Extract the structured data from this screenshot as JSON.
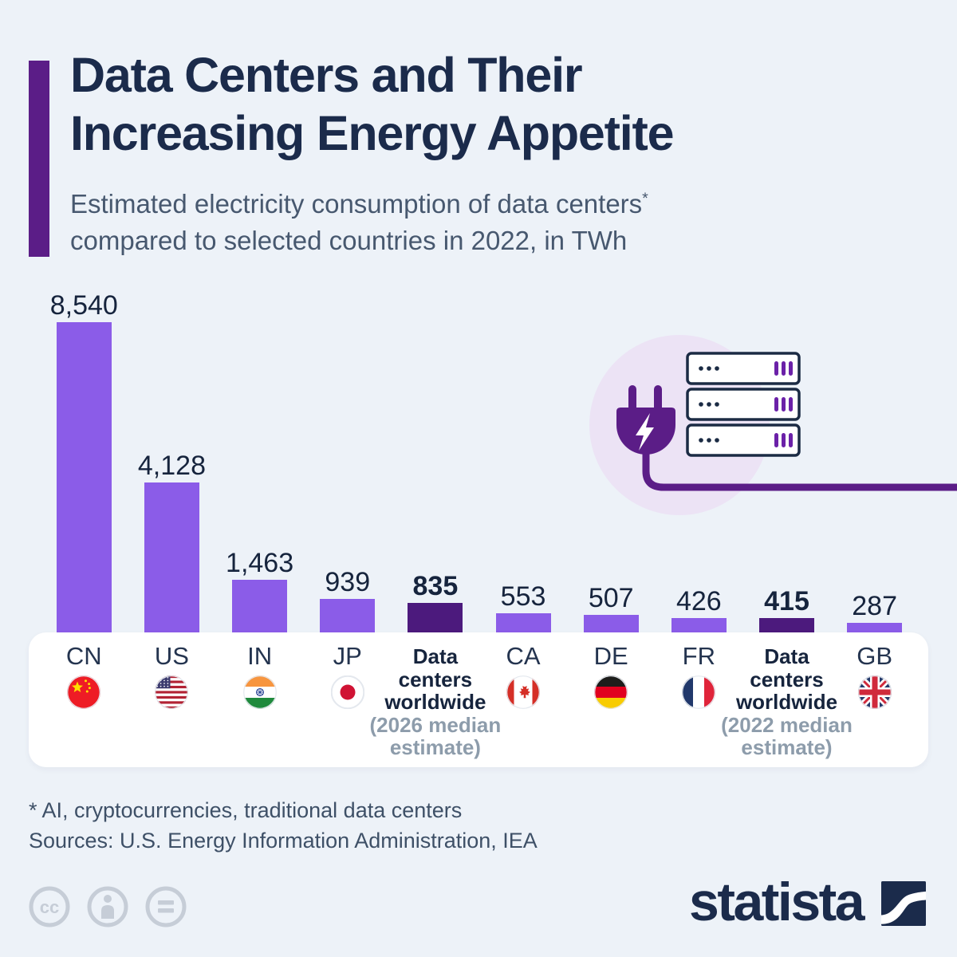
{
  "header": {
    "title_line1": "Data Centers and Their",
    "title_line2": "Increasing Energy Appetite",
    "subtitle_line1": "Estimated electricity consumption of data centers",
    "subtitle_asterisk": "*",
    "subtitle_line2": "compared to selected countries in 2022, in TWh"
  },
  "chart_data": {
    "type": "bar",
    "title": "Data Centers and Their Increasing Energy Appetite",
    "subtitle": "Estimated electricity consumption of data centers* compared to selected countries in 2022, in TWh",
    "unit": "TWh",
    "categories": [
      "CN",
      "US",
      "IN",
      "JP",
      "Data centers worldwide (2026 median estimate)",
      "CA",
      "DE",
      "FR",
      "Data centers worldwide (2022 median estimate)",
      "GB"
    ],
    "values": [
      8540,
      4128,
      1463,
      939,
      835,
      553,
      507,
      426,
      415,
      287
    ],
    "value_labels": [
      "8,540",
      "4,128",
      "1,463",
      "939",
      "835",
      "553",
      "507",
      "426",
      "415",
      "287"
    ],
    "highlighted_indices": [
      4,
      8
    ],
    "bar_color": "#8b5ce8",
    "highlight_color": "#4c1a7d",
    "ylim": [
      0,
      8540
    ],
    "grid": false,
    "legend": "none"
  },
  "axis_labels": [
    {
      "type": "country",
      "code": "CN",
      "flag": "cn"
    },
    {
      "type": "country",
      "code": "US",
      "flag": "us"
    },
    {
      "type": "country",
      "code": "IN",
      "flag": "in"
    },
    {
      "type": "country",
      "code": "JP",
      "flag": "jp"
    },
    {
      "type": "group",
      "lines": [
        "Data",
        "centers",
        "worldwide"
      ],
      "sub": [
        "(2026 median",
        "estimate)"
      ]
    },
    {
      "type": "country",
      "code": "CA",
      "flag": "ca"
    },
    {
      "type": "country",
      "code": "DE",
      "flag": "de"
    },
    {
      "type": "country",
      "code": "FR",
      "flag": "fr"
    },
    {
      "type": "group",
      "lines": [
        "Data",
        "centers",
        "worldwide"
      ],
      "sub": [
        "(2022 median",
        "estimate)"
      ]
    },
    {
      "type": "country",
      "code": "GB",
      "flag": "gb"
    }
  ],
  "illustration": {
    "icons": [
      "power-plug-icon",
      "lightning-bolt-icon",
      "server-rack-icon",
      "power-cord-icon"
    ],
    "circle_color": "#ece3f5",
    "plug_color": "#5b1d87",
    "server_outline_color": "#1b2b44",
    "server_led_color": "#6b21a8"
  },
  "footer": {
    "footnote": "* AI, cryptocurrencies, traditional data centers",
    "sources": "Sources: U.S. Energy Information Administration, IEA"
  },
  "branding": {
    "logo_text": "statista",
    "logo_color": "#1b2b4b"
  },
  "license": {
    "icons": [
      "cc-icon",
      "attribution-person-icon",
      "no-derivatives-equals-icon"
    ],
    "icon_color": "#c6cdd7"
  },
  "colors": {
    "background": "#edf2f8",
    "title_navy": "#1b2b4b",
    "subtitle_gray": "#47586f",
    "accent_purple": "#5b1d87",
    "label_gray": "#8d9cab",
    "footer_gray": "#3e5067",
    "strip_white": "#ffffff"
  }
}
